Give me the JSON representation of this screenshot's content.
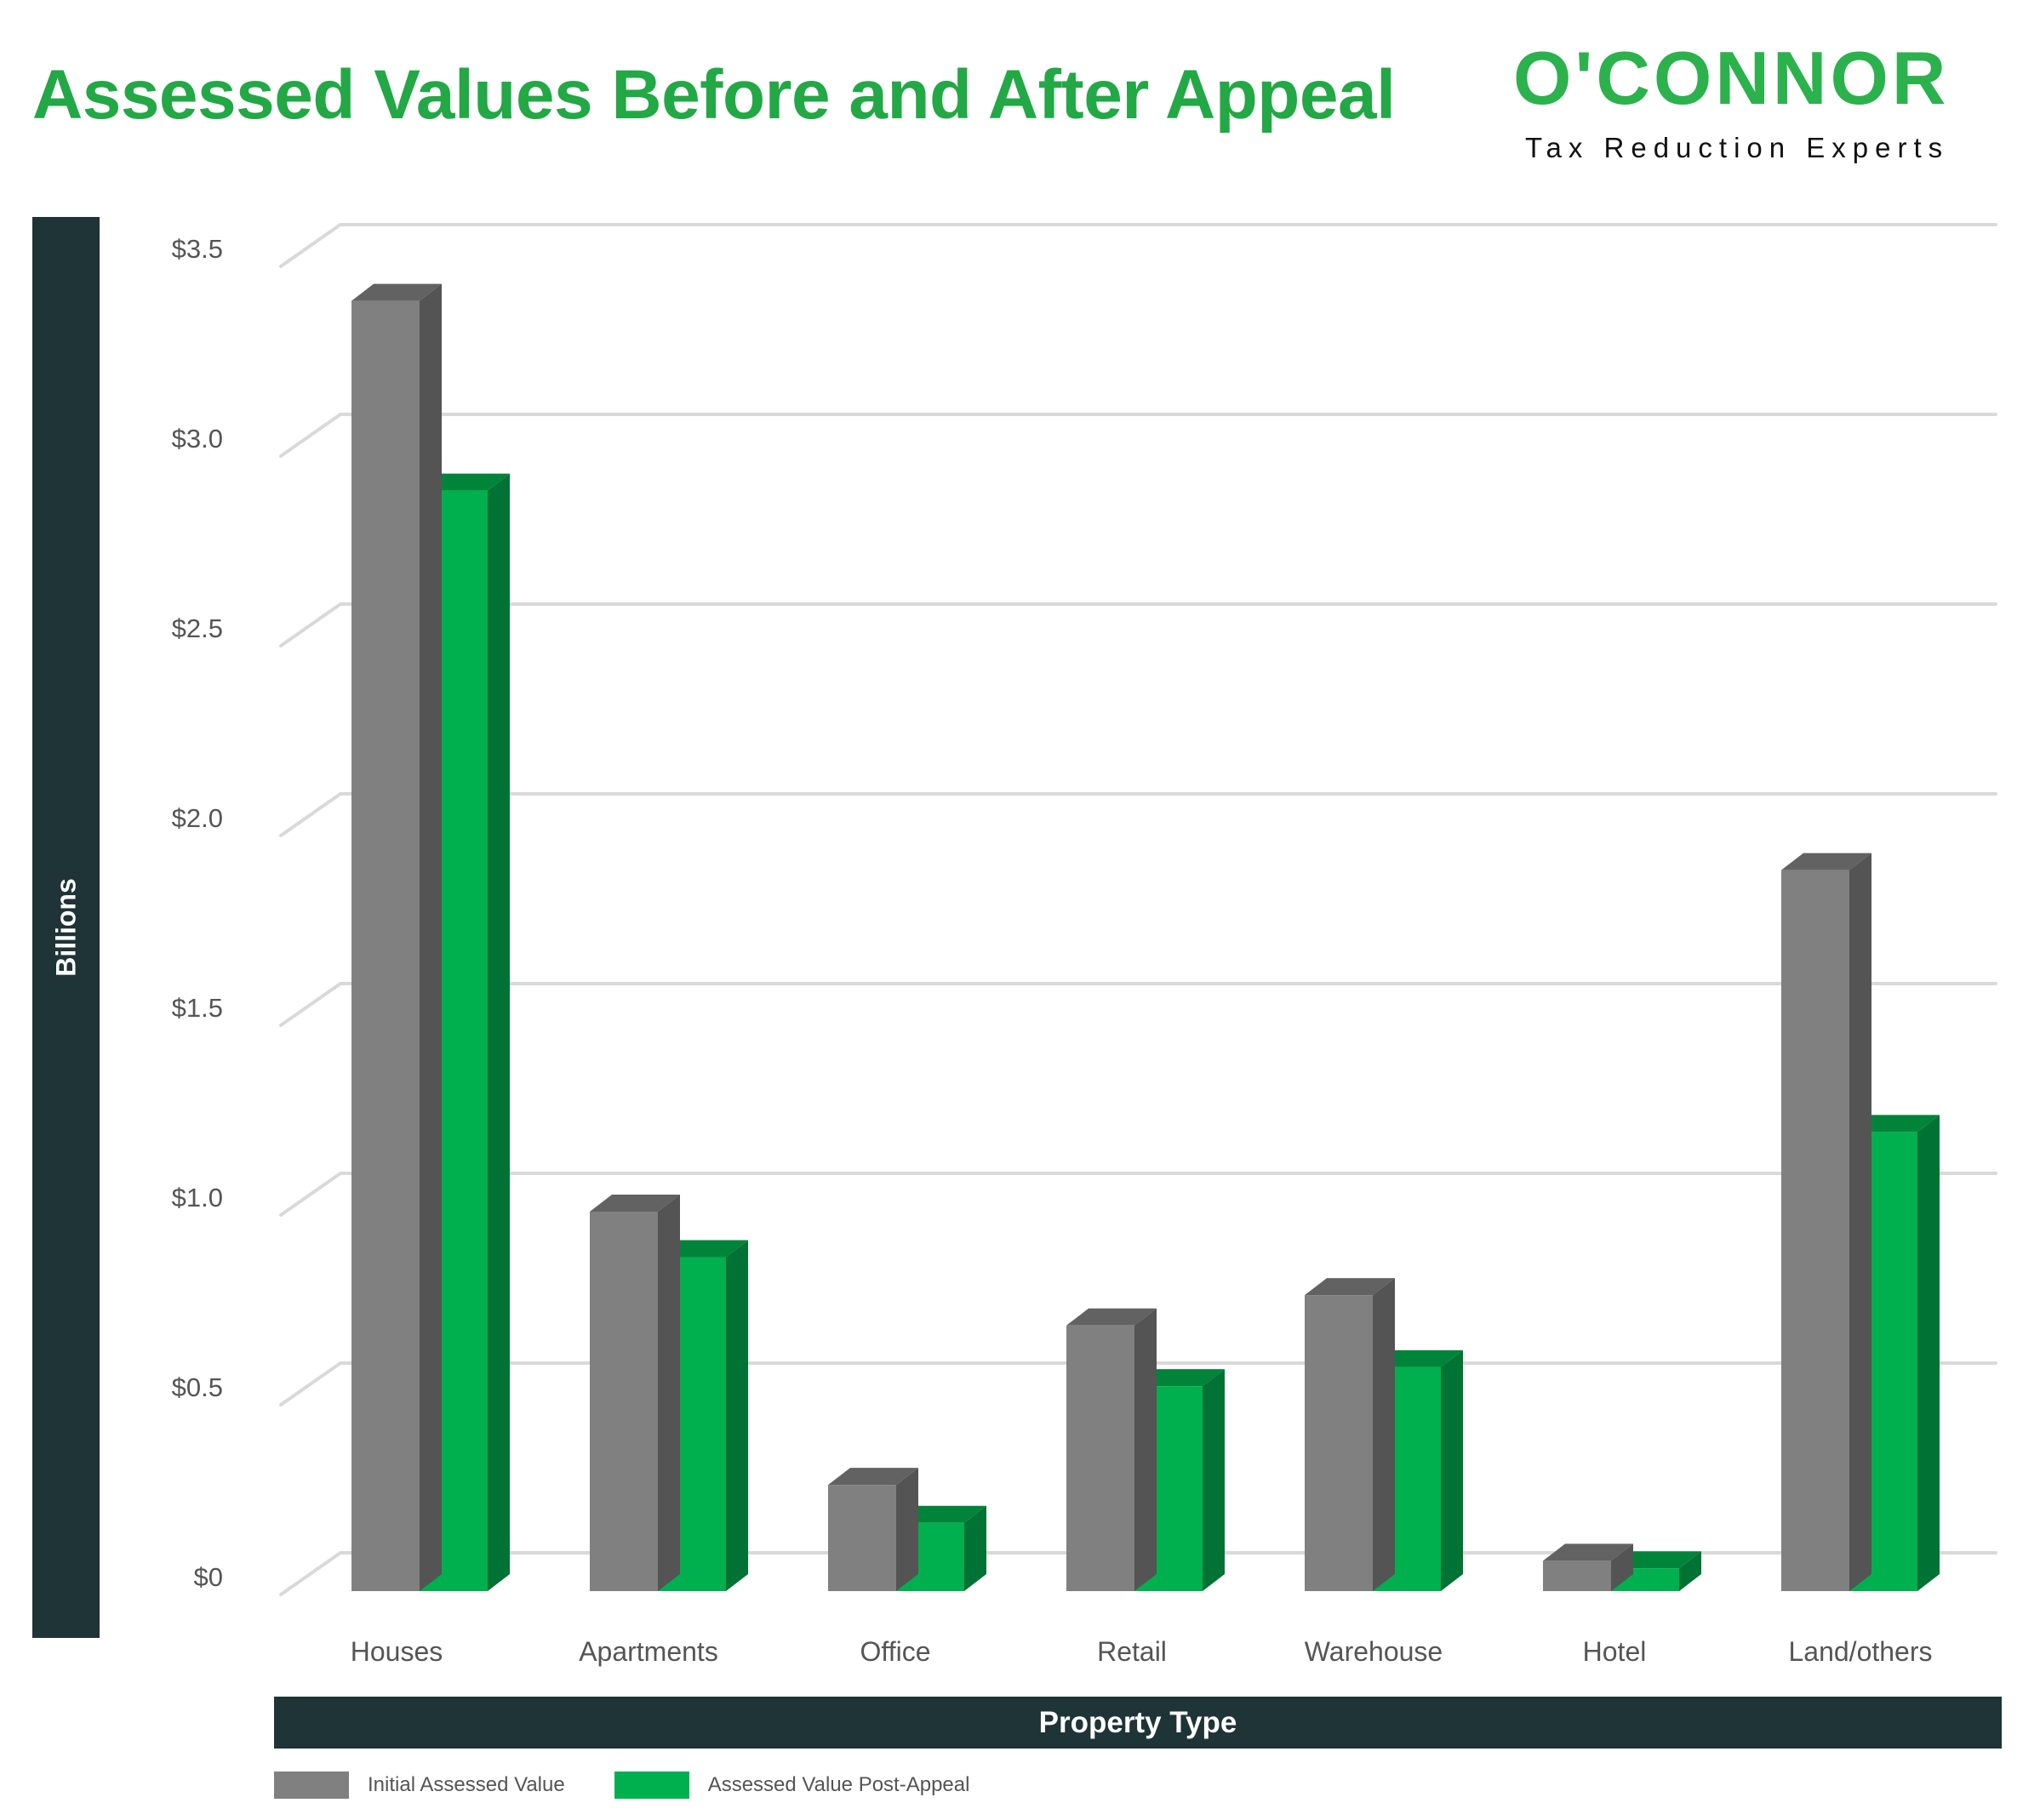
{
  "header": {
    "title": "Assessed Values Before and After Appeal"
  },
  "logo": {
    "wordmark": "O'CONNOR",
    "tagline": "Tax Reduction Experts",
    "color": "#2bb24c"
  },
  "colors": {
    "title": "#22a845",
    "axis_band": "#1e3436",
    "initial_front": "#808080",
    "initial_side": "#545454",
    "initial_top": "#626262",
    "post_front": "#00b04f",
    "post_side": "#007233",
    "post_top": "#00843a",
    "grid": "#d9d9d9",
    "tick_text": "#555555"
  },
  "chart_data": {
    "type": "bar",
    "title": "Assessed Values Before and After Appeal",
    "xlabel": "Property Type",
    "ylabel": "Billions",
    "ylim": [
      0,
      3.5
    ],
    "yticks": [
      0,
      0.5,
      1.0,
      1.5,
      2.0,
      2.5,
      3.0,
      3.5
    ],
    "ytick_labels": [
      "$0",
      "$0.5",
      "$1.0",
      "$1.5",
      "$2.0",
      "$2.5",
      "$3.0",
      "$3.5"
    ],
    "grid": true,
    "style": "3d-clustered-column",
    "legend_position": "bottom-left",
    "categories": [
      "Houses",
      "Apartments",
      "Office",
      "Retail",
      "Warehouse",
      "Hotel",
      "Land/others"
    ],
    "series": [
      {
        "name": "Initial Assessed Value",
        "values": [
          3.4,
          1.0,
          0.28,
          0.7,
          0.78,
          0.08,
          1.9
        ]
      },
      {
        "name": "Assessed Value Post-Appeal",
        "values": [
          2.9,
          0.88,
          0.18,
          0.54,
          0.59,
          0.06,
          1.21
        ]
      }
    ]
  }
}
